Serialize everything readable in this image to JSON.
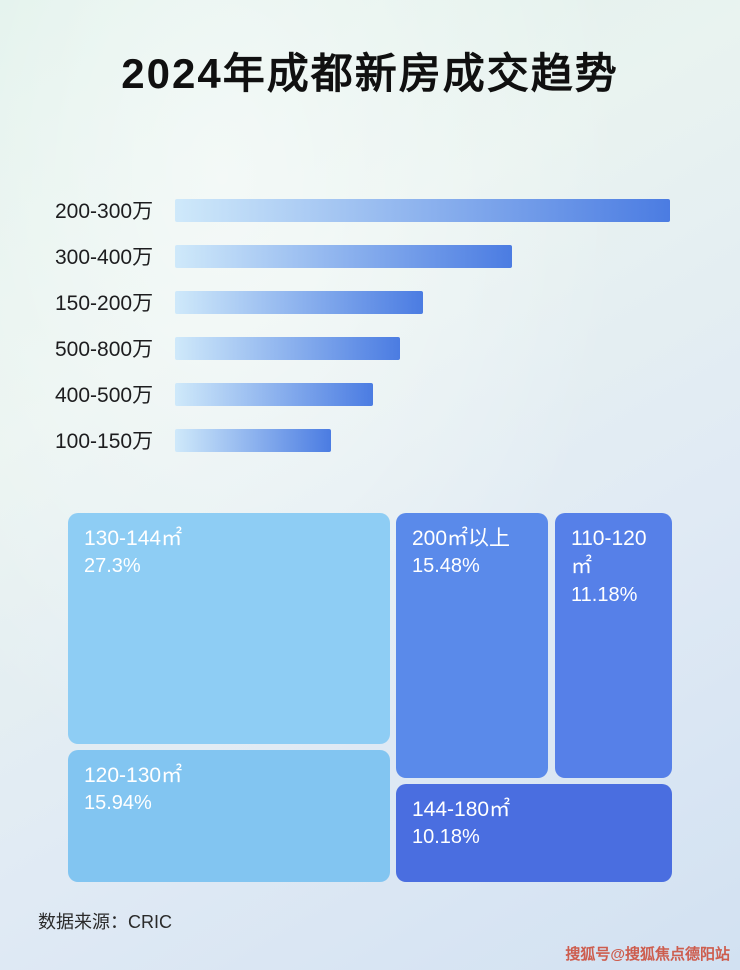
{
  "page": {
    "title": "2024年成都新房成交趋势",
    "source_label": "数据来源：CRIC",
    "watermark": "搜狐号@搜狐焦点德阳站"
  },
  "chart_data": [
    {
      "type": "bar",
      "orientation": "horizontal",
      "title": "2024年成都新房成交趋势",
      "categories": [
        "200-300万",
        "300-400万",
        "150-200万",
        "500-800万",
        "400-500万",
        "100-150万"
      ],
      "values": [
        100,
        68,
        50,
        45.5,
        40,
        31.5
      ],
      "value_note": "relative bar lengths in % of longest bar; no numeric axis shown",
      "bar_gradient": [
        "#cfe9fa",
        "#4b7ce2"
      ],
      "grid": false,
      "legend": false
    },
    {
      "type": "treemap",
      "title": "",
      "blocks": [
        {
          "label": "130-144㎡",
          "value": "27.3%",
          "color": "#8ecdf4"
        },
        {
          "label": "120-130㎡",
          "value": "15.94%",
          "color": "#82c5f1"
        },
        {
          "label": "200㎡以上",
          "value": "15.48%",
          "color": "#5a8aea"
        },
        {
          "label": "110-120㎡",
          "value": "11.18%",
          "color": "#5680e8"
        },
        {
          "label": "144-180㎡",
          "value": "10.18%",
          "color": "#4a6ee0"
        }
      ]
    }
  ]
}
